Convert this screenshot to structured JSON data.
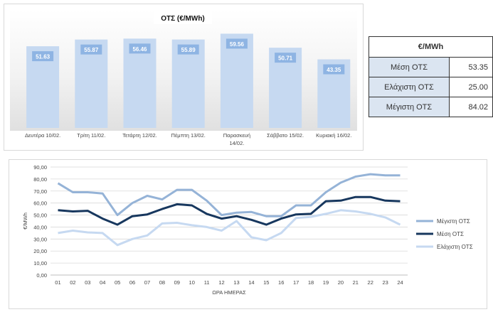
{
  "bar_title": "ΟΤΣ (€/MWh)",
  "table": {
    "header": "€/MWh",
    "rows": [
      {
        "label": "Μέση ΟΤΣ",
        "value": "53.35"
      },
      {
        "label": "Ελάχιστη ΟΤΣ",
        "value": "25.00"
      },
      {
        "label": "Μέγιστη ΟΤΣ",
        "value": "84.02"
      }
    ]
  },
  "colors": {
    "bar": "#c6d9f1",
    "bar_label_bg": "#8eb4e3",
    "max": "#95b3d7",
    "avg": "#17375e",
    "min": "#c6d9f1"
  },
  "chart_data": [
    {
      "type": "bar",
      "title": "ΟΤΣ (€/MWh)",
      "categories": [
        "Δευτέρα 10/02.",
        "Τρίτη 11/02.",
        "Τετάρτη 12/02.",
        "Πέμπτη 13/02.",
        "Παρασκευή 14/02.",
        "Σάββατο 15/02.",
        "Κυριακή 16/02."
      ],
      "values": [
        51.63,
        55.87,
        56.46,
        55.89,
        59.56,
        50.71,
        43.35
      ],
      "value_labels": [
        "51.63",
        "55.87",
        "56.46",
        "55.89",
        "59.56",
        "50.71",
        "43.35"
      ],
      "ylim": [
        0,
        62
      ]
    },
    {
      "type": "line",
      "xlabel": "ΩΡΑ ΗΜΕΡΑΣ",
      "ylabel": "€/MWh",
      "x": [
        "01",
        "02",
        "03",
        "04",
        "05",
        "06",
        "07",
        "08",
        "09",
        "10",
        "11",
        "12",
        "13",
        "14",
        "15",
        "16",
        "17",
        "18",
        "19",
        "20",
        "21",
        "22",
        "23",
        "24"
      ],
      "yticks": [
        "0,00",
        "10,00",
        "20,00",
        "30,00",
        "40,00",
        "50,00",
        "60,00",
        "70,00",
        "80,00",
        "90,00"
      ],
      "ylim": [
        0,
        90
      ],
      "grid": true,
      "legend": "right",
      "series": [
        {
          "name": "Μέγιστη ΟΤΣ",
          "values": [
            76.5,
            69,
            69,
            68,
            50,
            60,
            66,
            63,
            71,
            71,
            62,
            50,
            52,
            52.5,
            49,
            49,
            58,
            58,
            69,
            77,
            82,
            84,
            83,
            83
          ]
        },
        {
          "name": "Μέση ΟΤΣ",
          "values": [
            54,
            53,
            53.5,
            47,
            42,
            49,
            50.5,
            55,
            59,
            58,
            51,
            47,
            49,
            46,
            42,
            47,
            50.5,
            51,
            61.5,
            62,
            65,
            65,
            62,
            61.5
          ]
        },
        {
          "name": "Ελάχιστη ΟΤΣ",
          "values": [
            35,
            37,
            35.5,
            35,
            25,
            30,
            33,
            43,
            43.5,
            41.5,
            40,
            37,
            45,
            31.5,
            29,
            35,
            47.5,
            48.5,
            51,
            54,
            53,
            51,
            48,
            42
          ]
        }
      ]
    }
  ]
}
